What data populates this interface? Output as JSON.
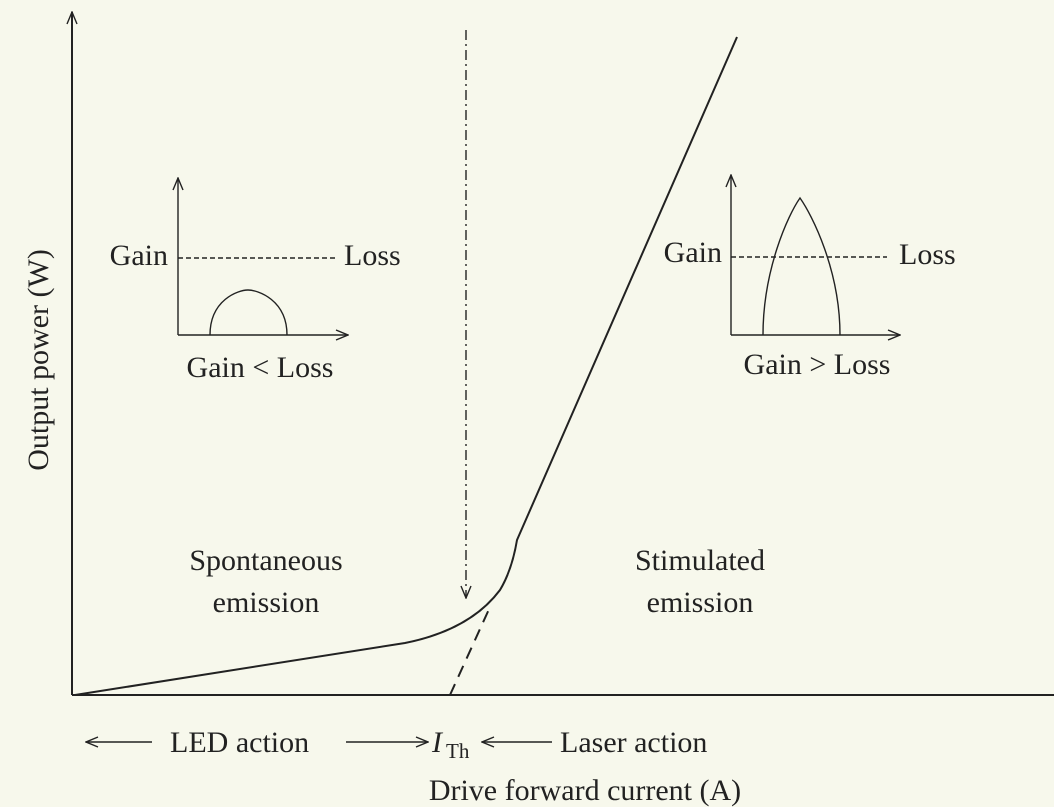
{
  "axes": {
    "y_label": "Output power (W)",
    "x_label": "Drive forward current (A)"
  },
  "insets": [
    {
      "gain": "Gain",
      "loss": "Loss",
      "caption": "Gain < Loss"
    },
    {
      "gain": "Gain",
      "loss": "Loss",
      "caption": "Gain > Loss"
    }
  ],
  "regions": [
    {
      "line1": "Spontaneous",
      "line2": "emission"
    },
    {
      "line1": "Stimulated",
      "line2": "emission"
    }
  ],
  "bottom": {
    "led": "LED action",
    "threshold_symbol": "I",
    "threshold_subscript": "Th",
    "laser": "Laser action"
  }
}
